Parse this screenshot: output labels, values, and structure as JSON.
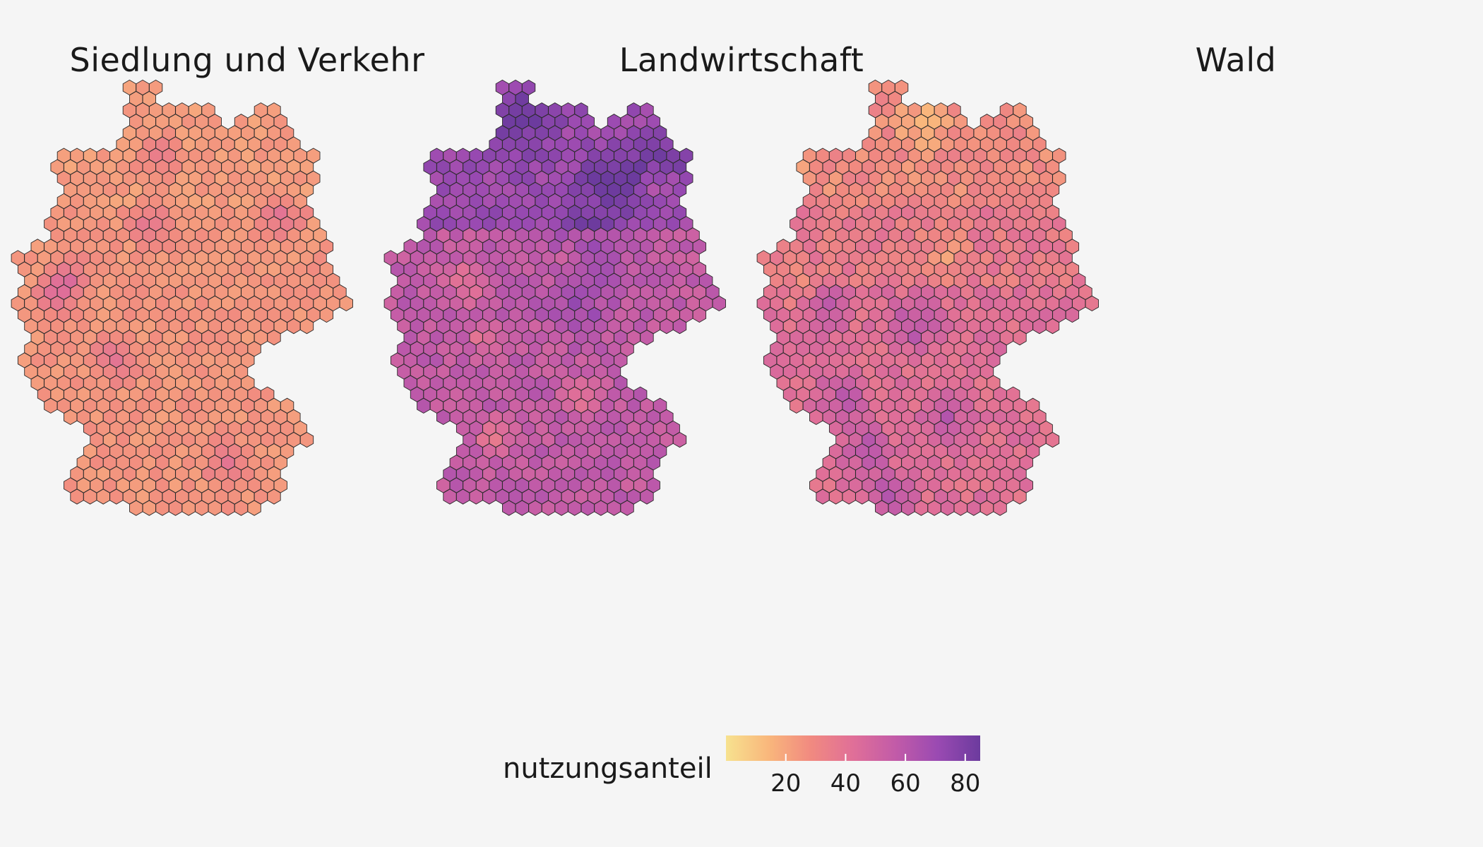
{
  "chart_data": {
    "type": "heatmap",
    "panels": [
      {
        "title": "Siedlung und Verkehr",
        "key": "siedlung"
      },
      {
        "title": "Landwirtschaft",
        "key": "landwirtschaft"
      },
      {
        "title": "Wald",
        "key": "wald"
      }
    ],
    "legend": {
      "title": "nutzungsanteil",
      "ticks": [
        20,
        40,
        60,
        80
      ],
      "range": [
        0,
        85
      ],
      "colors": [
        "#f7e28f",
        "#f9b77c",
        "#f18a80",
        "#e06f98",
        "#c25ba8",
        "#9a4ab2",
        "#6c3b9e"
      ]
    },
    "background": "#f5f5f5",
    "hex_outline": "#2b2b2b"
  }
}
